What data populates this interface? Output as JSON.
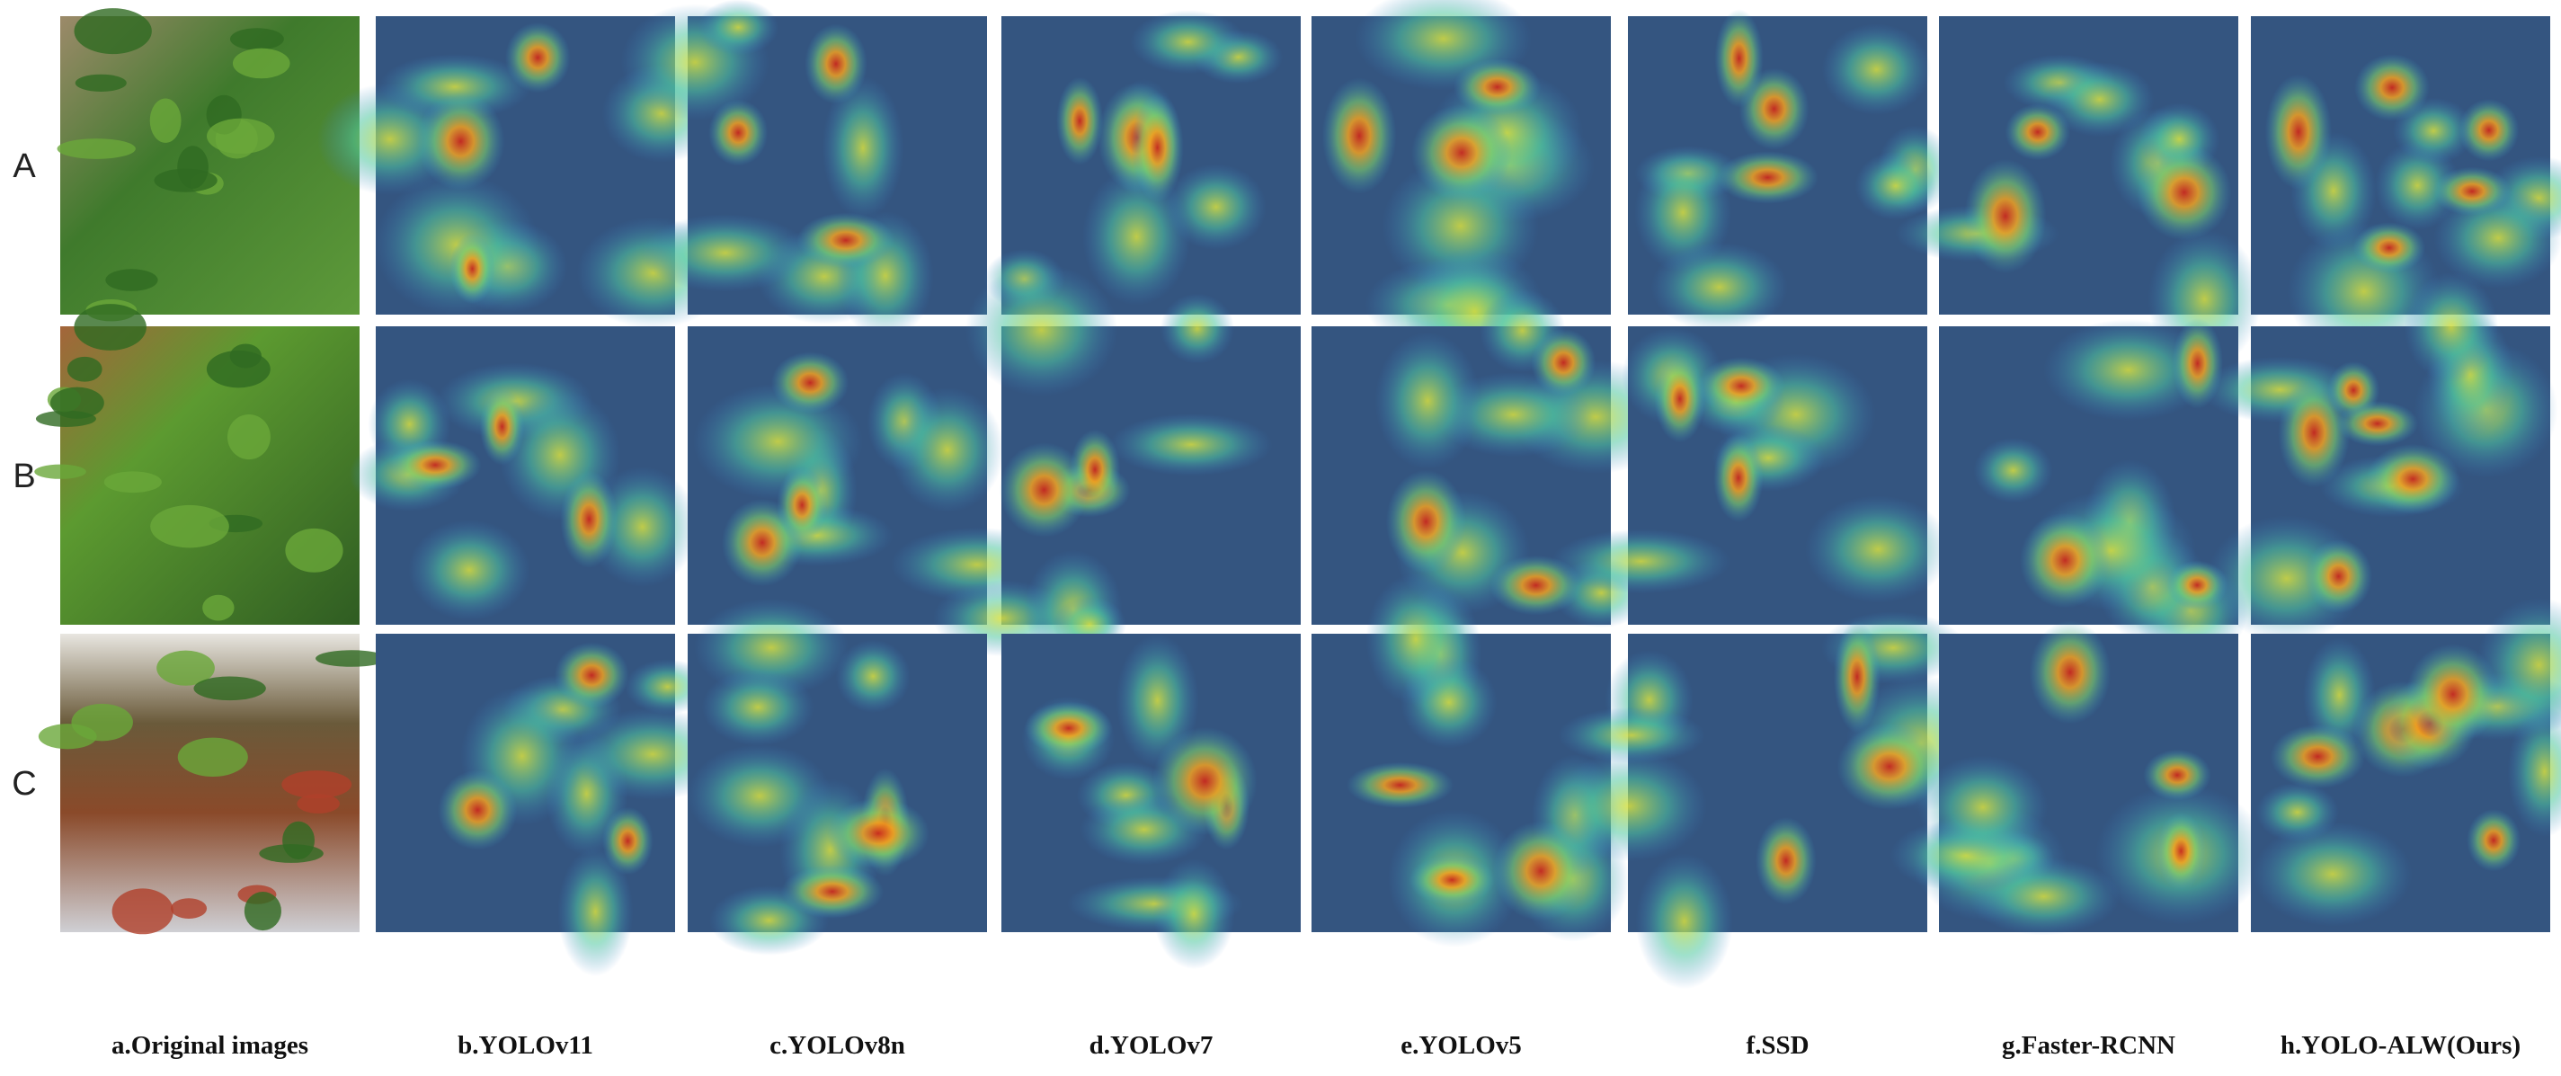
{
  "figure": {
    "row_labels": [
      "A",
      "B",
      "C"
    ],
    "column_captions": [
      "a.Original images",
      "b.YOLOv11",
      "c.YOLOv8n",
      "d.YOLOv7",
      "e.YOLOv5",
      "f.SSD",
      "g.Faster-RCNN",
      "h.YOLO-ALW(Ours)"
    ]
  }
}
